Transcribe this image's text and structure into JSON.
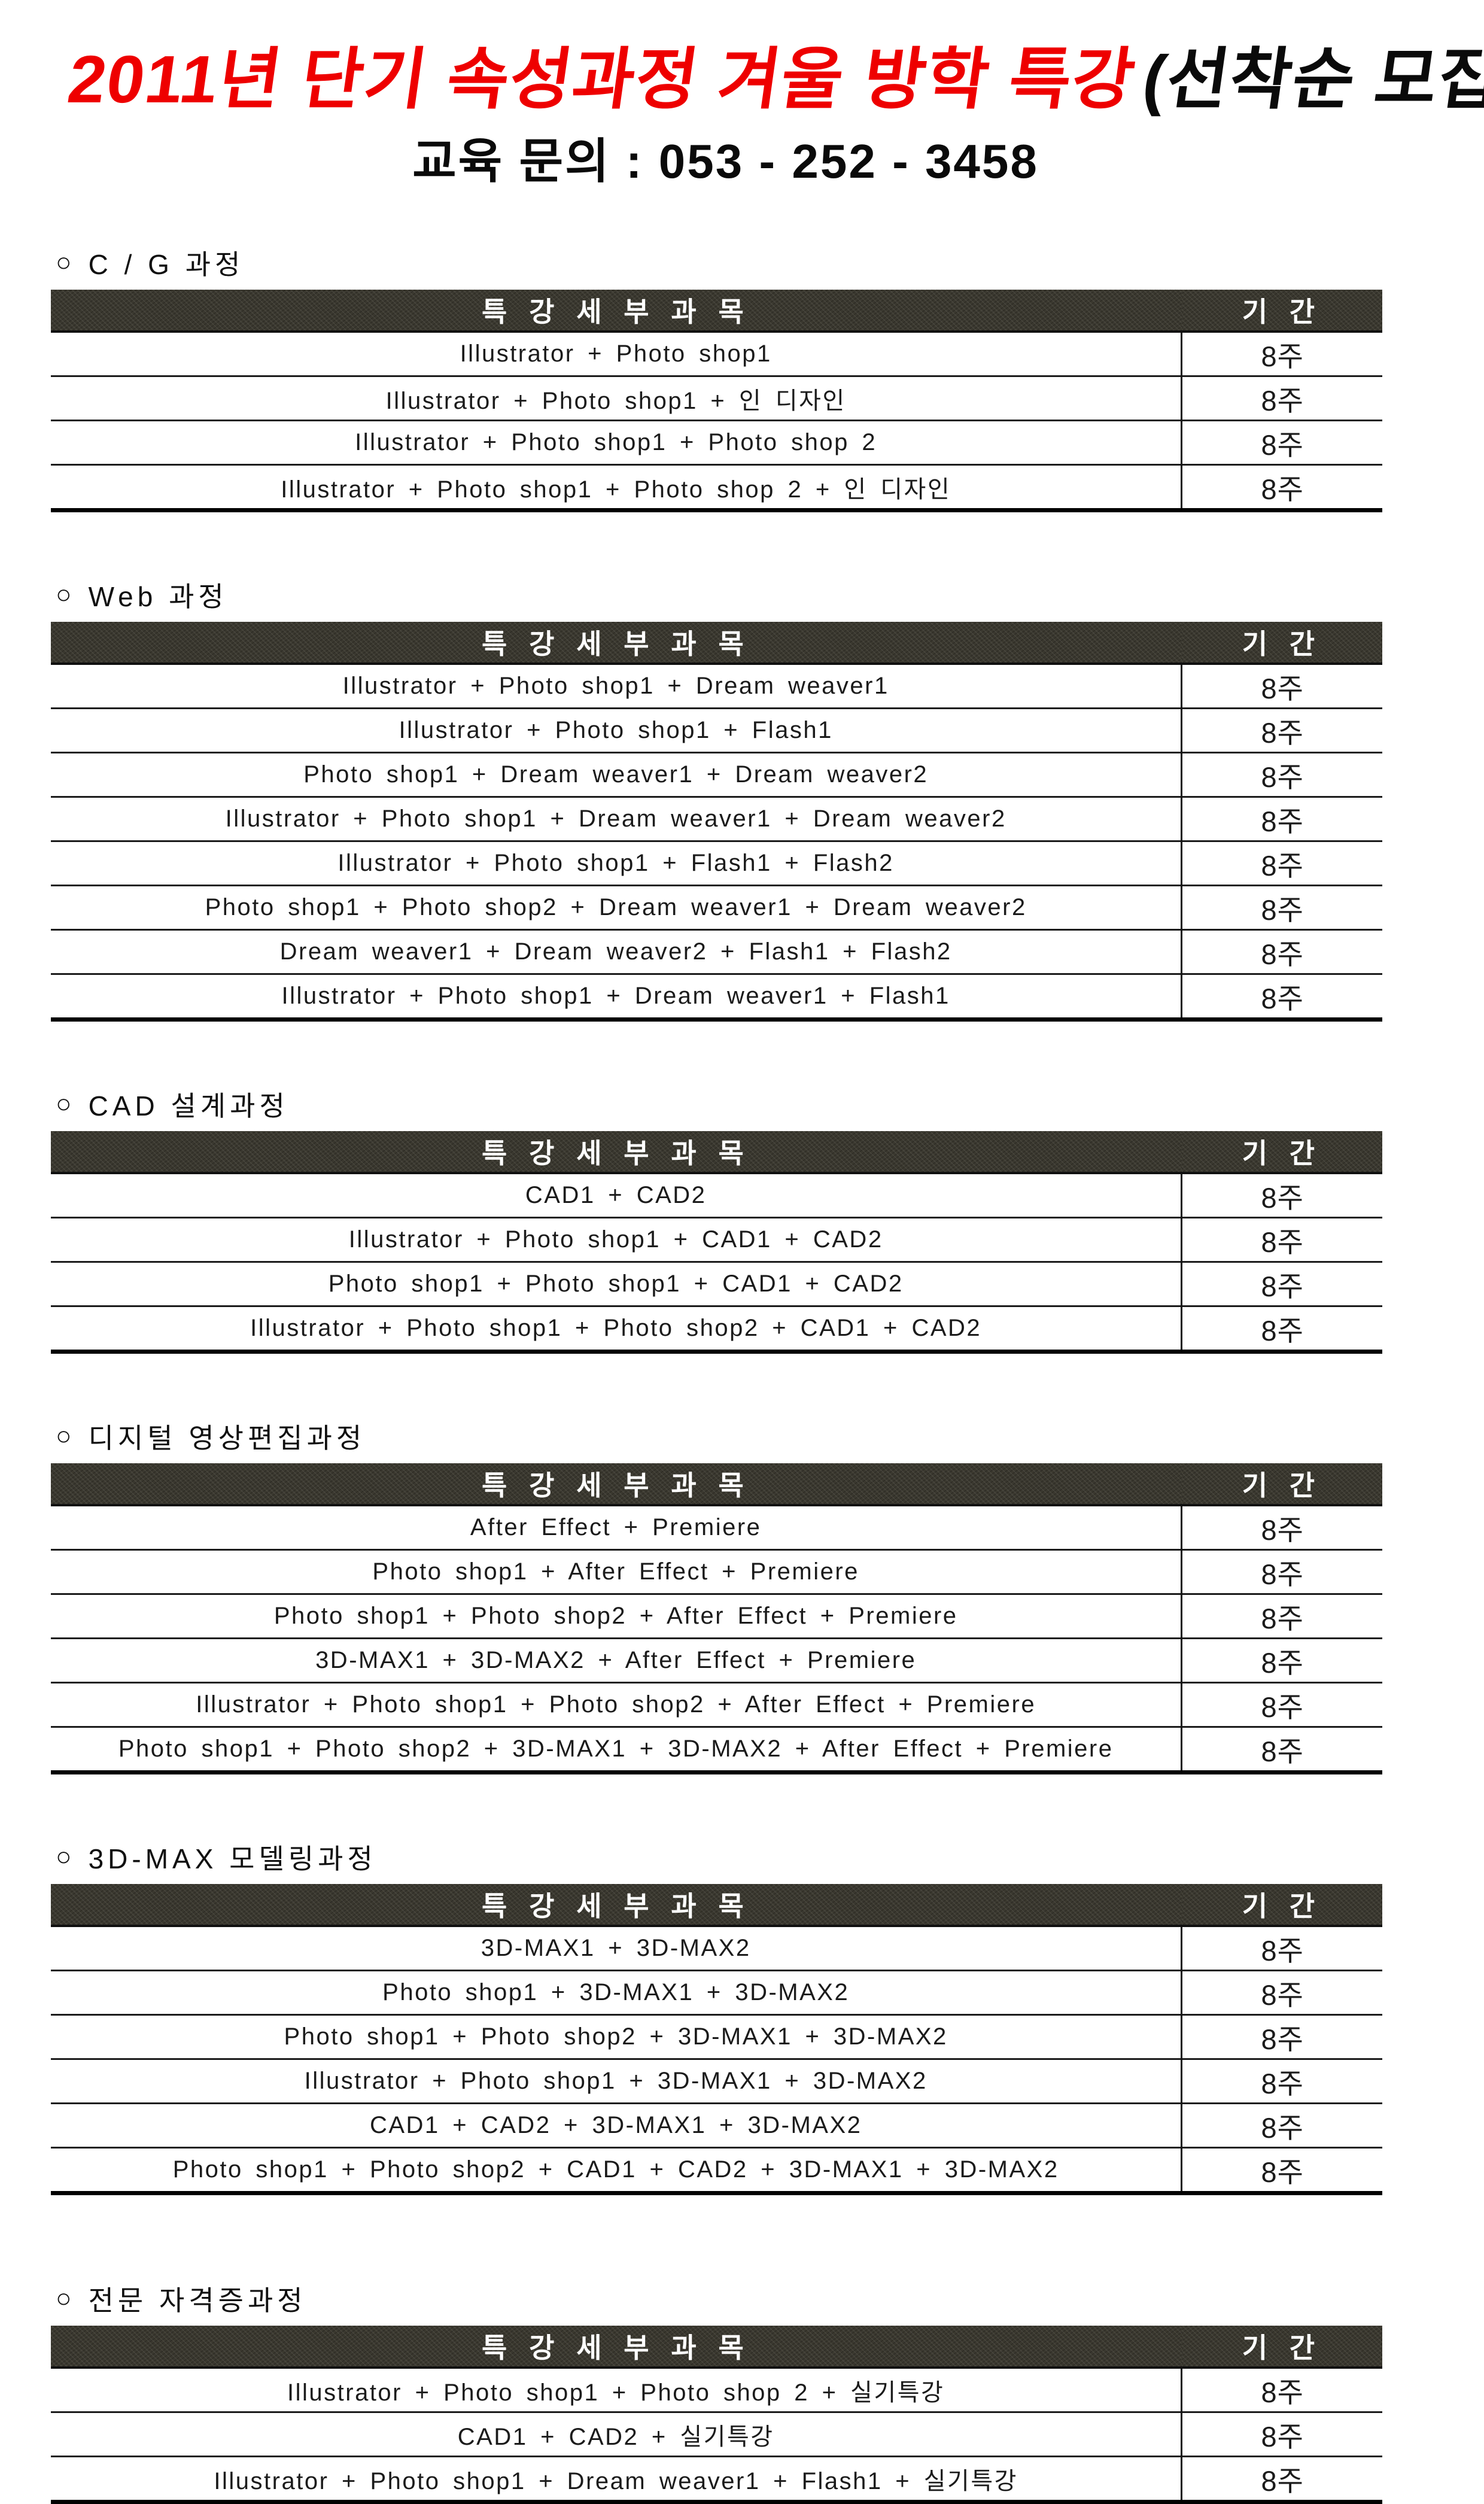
{
  "page": {
    "title_red": "2011년 단기 속성과정 겨울 방학 특강",
    "title_black": "(선착순 모집)",
    "subtitle": "교육 문의 : 053 - 252 - 3458"
  },
  "table_header": {
    "subject": "특 강 세 부 과 목",
    "duration": "기 간"
  },
  "section_bullet": "○",
  "colors": {
    "accent_red": "#ee0000",
    "header_bg": "#3a382f",
    "ink": "#161616"
  },
  "sections": [
    {
      "label": "C / G 과정",
      "rows": [
        {
          "subject": "Illustrator + Photo shop1",
          "duration": "8주"
        },
        {
          "subject": "Illustrator + Photo shop1 + 인 디자인",
          "duration": "8주"
        },
        {
          "subject": "Illustrator + Photo shop1 + Photo shop 2",
          "duration": "8주"
        },
        {
          "subject": "Illustrator + Photo shop1 + Photo shop 2 + 인 디자인",
          "duration": "8주"
        }
      ]
    },
    {
      "label": "Web 과정",
      "rows": [
        {
          "subject": "Illustrator + Photo shop1 + Dream weaver1",
          "duration": "8주"
        },
        {
          "subject": "Illustrator + Photo shop1 + Flash1",
          "duration": "8주"
        },
        {
          "subject": "Photo shop1 + Dream weaver1 + Dream weaver2",
          "duration": "8주"
        },
        {
          "subject": "Illustrator + Photo shop1 + Dream weaver1 + Dream weaver2",
          "duration": "8주"
        },
        {
          "subject": "Illustrator + Photo shop1 + Flash1 + Flash2",
          "duration": "8주"
        },
        {
          "subject": "Photo shop1 + Photo shop2 + Dream weaver1 + Dream weaver2",
          "duration": "8주"
        },
        {
          "subject": "Dream weaver1 + Dream weaver2 + Flash1 + Flash2",
          "duration": "8주"
        },
        {
          "subject": "Illustrator + Photo shop1 + Dream weaver1 + Flash1",
          "duration": "8주"
        }
      ]
    },
    {
      "label": "CAD 설계과정",
      "rows": [
        {
          "subject": "CAD1 + CAD2",
          "duration": "8주"
        },
        {
          "subject": "Illustrator + Photo shop1 + CAD1 + CAD2",
          "duration": "8주"
        },
        {
          "subject": "Photo shop1 + Photo shop1 + CAD1 + CAD2",
          "duration": "8주"
        },
        {
          "subject": "Illustrator + Photo shop1 + Photo shop2 + CAD1 + CAD2",
          "duration": "8주"
        }
      ]
    },
    {
      "label": "디지털 영상편집과정",
      "rows": [
        {
          "subject": "After Effect + Premiere",
          "duration": "8주"
        },
        {
          "subject": "Photo shop1 + After Effect + Premiere",
          "duration": "8주"
        },
        {
          "subject": "Photo shop1 + Photo shop2 + After Effect + Premiere",
          "duration": "8주"
        },
        {
          "subject": "3D-MAX1 + 3D-MAX2 + After Effect + Premiere",
          "duration": "8주"
        },
        {
          "subject": "Illustrator + Photo shop1 + Photo shop2 + After Effect + Premiere",
          "duration": "8주"
        },
        {
          "subject": "Photo shop1 + Photo shop2 + 3D-MAX1 + 3D-MAX2 + After Effect + Premiere",
          "duration": "8주"
        }
      ]
    },
    {
      "label": "3D-MAX 모델링과정",
      "rows": [
        {
          "subject": "3D-MAX1 + 3D-MAX2",
          "duration": "8주"
        },
        {
          "subject": "Photo shop1 + 3D-MAX1 + 3D-MAX2",
          "duration": "8주"
        },
        {
          "subject": "Photo shop1 + Photo shop2 + 3D-MAX1 + 3D-MAX2",
          "duration": "8주"
        },
        {
          "subject": "Illustrator + Photo shop1 + 3D-MAX1 + 3D-MAX2",
          "duration": "8주"
        },
        {
          "subject": "CAD1 + CAD2 + 3D-MAX1 + 3D-MAX2",
          "duration": "8주"
        },
        {
          "subject": "Photo shop1 + Photo shop2 + CAD1 + CAD2 + 3D-MAX1 + 3D-MAX2",
          "duration": "8주"
        }
      ]
    },
    {
      "label": "전문 자격증과정",
      "rows": [
        {
          "subject": "Illustrator + Photo shop1 + Photo shop 2 + 실기특강",
          "duration": "8주"
        },
        {
          "subject": "CAD1 + CAD2 + 실기특강",
          "duration": "8주"
        },
        {
          "subject": "Illustrator + Photo shop1 + Dream weaver1 + Flash1 + 실기특강",
          "duration": "8주"
        }
      ]
    }
  ]
}
